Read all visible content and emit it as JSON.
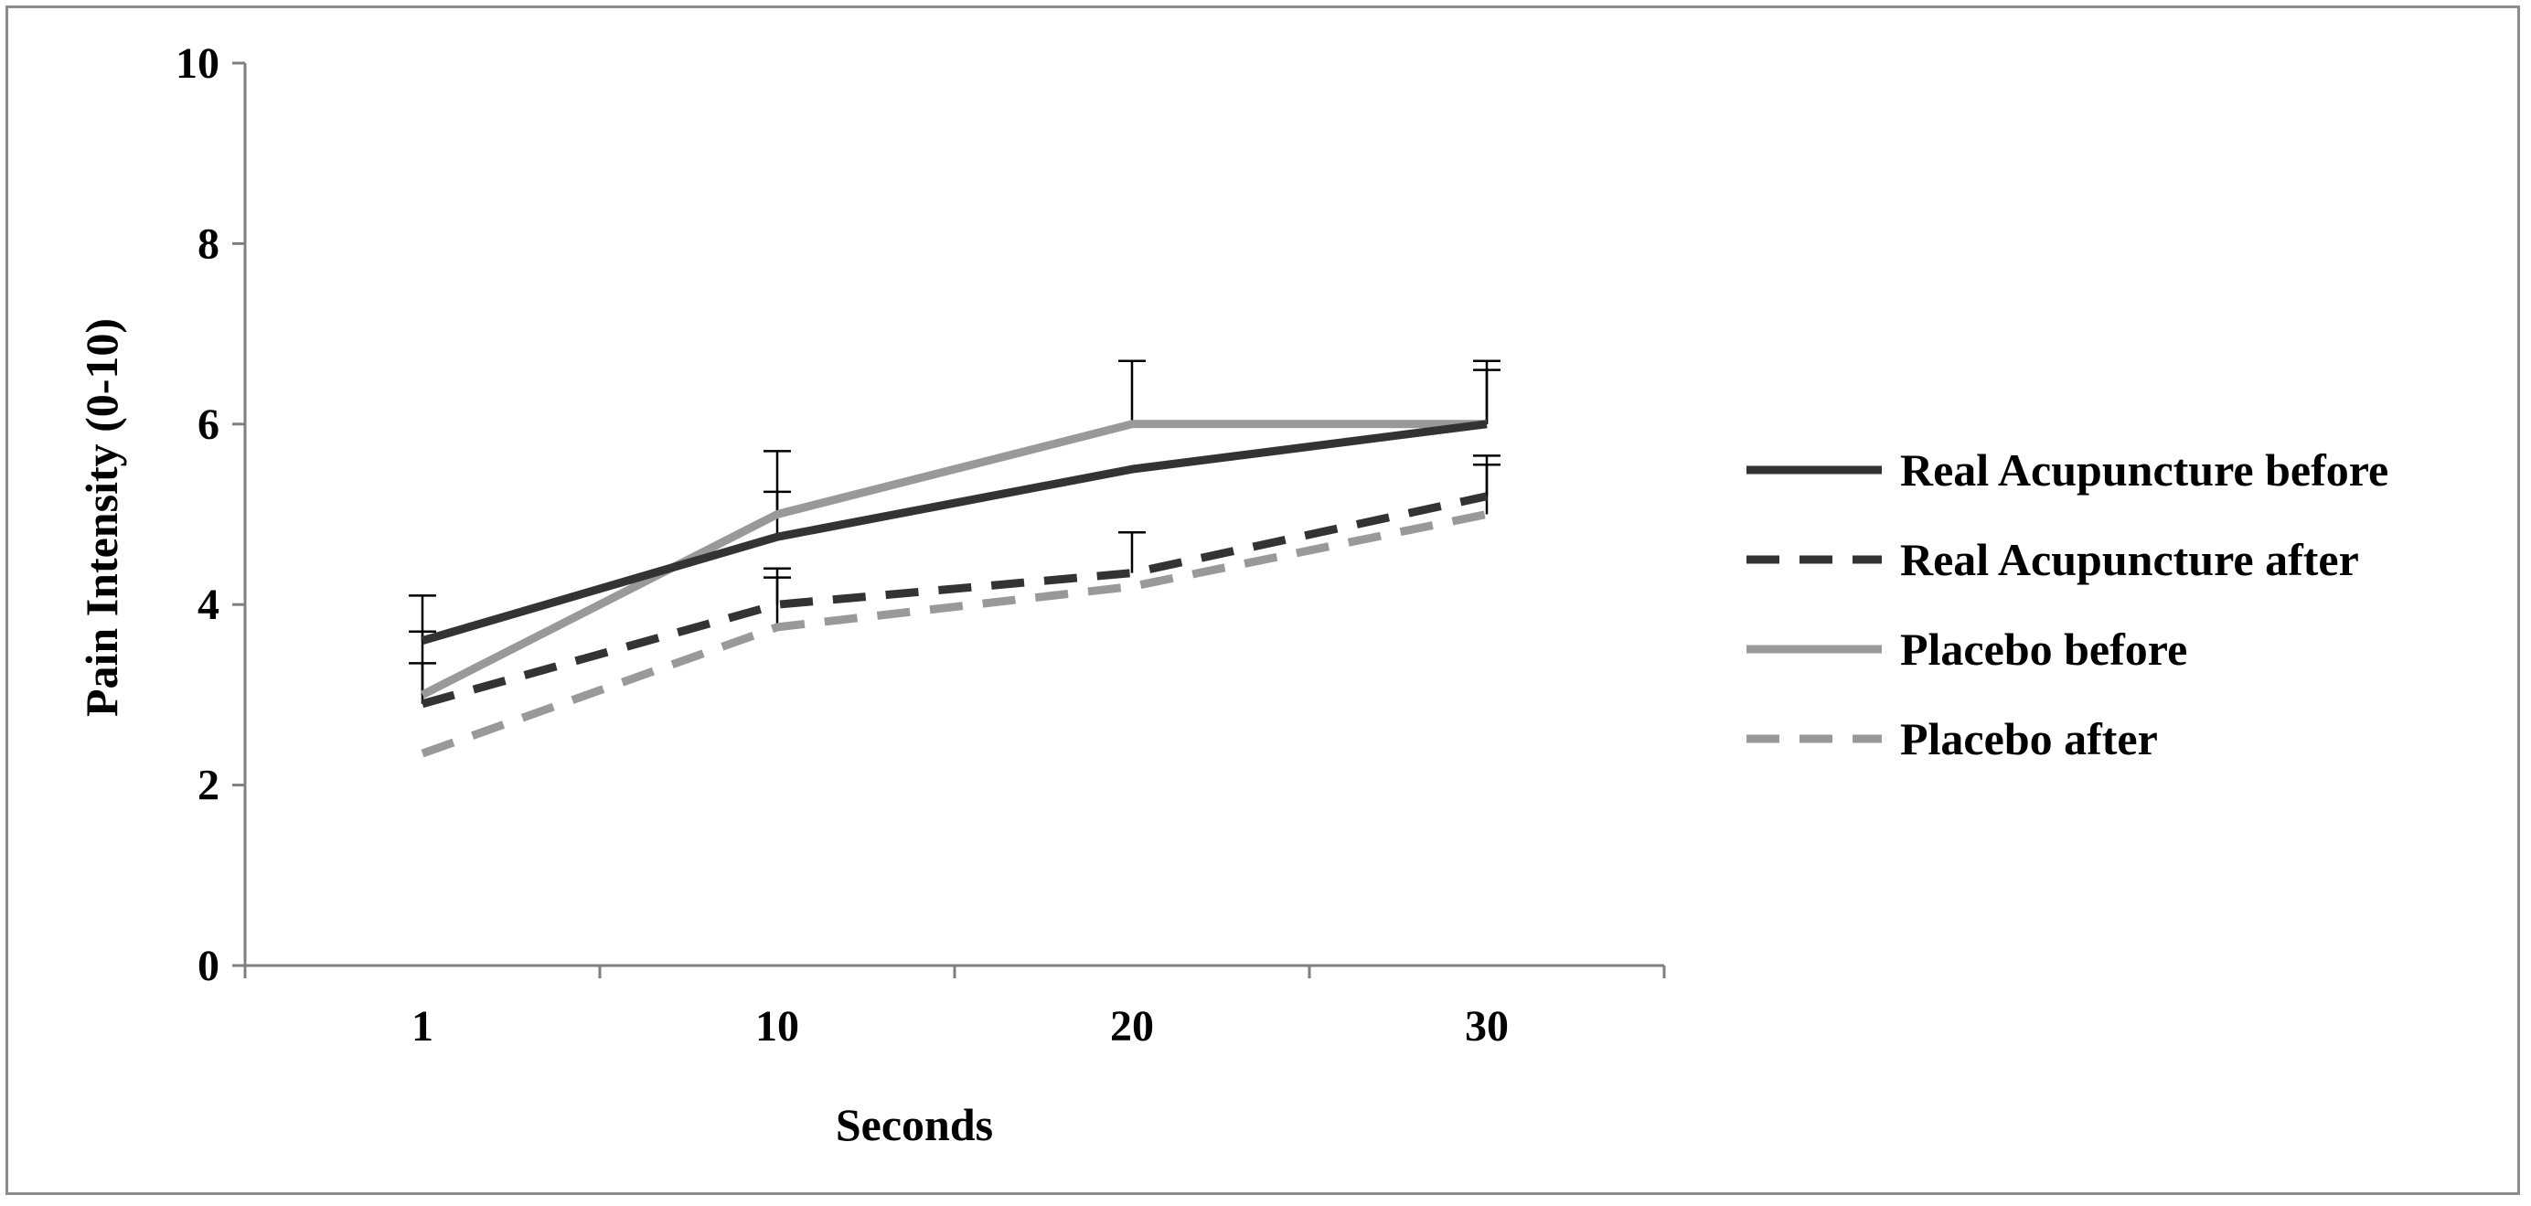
{
  "chart_data": {
    "type": "line",
    "title": "",
    "xlabel": "Seconds",
    "ylabel": "Pain Intensity (0-10)",
    "categories": [
      "1",
      "10",
      "20",
      "30"
    ],
    "ylim": [
      0,
      10
    ],
    "yticks": [
      "0",
      "2",
      "4",
      "6",
      "8",
      "10"
    ],
    "grid": false,
    "legend_position": "right",
    "series": [
      {
        "name": "Real Acupuncture before",
        "values": [
          3.6,
          4.75,
          5.5,
          6.0
        ],
        "error": [
          0.5,
          0.5,
          0.0,
          0.6
        ],
        "color": "#333333",
        "dashed": false
      },
      {
        "name": "Real Acupuncture after",
        "values": [
          2.9,
          4.0,
          4.35,
          5.2
        ],
        "error": [
          0.45,
          0.4,
          0.45,
          0.45
        ],
        "color": "#333333",
        "dashed": true
      },
      {
        "name": "Placebo before",
        "values": [
          3.0,
          5.0,
          6.0,
          6.0
        ],
        "error": [
          0.7,
          0.7,
          0.7,
          0.7
        ],
        "color": "#999999",
        "dashed": false
      },
      {
        "name": "Placebo after",
        "values": [
          2.35,
          3.75,
          4.2,
          5.0
        ],
        "error": [
          0.0,
          0.55,
          0.0,
          0.55
        ],
        "color": "#999999",
        "dashed": true
      }
    ]
  }
}
